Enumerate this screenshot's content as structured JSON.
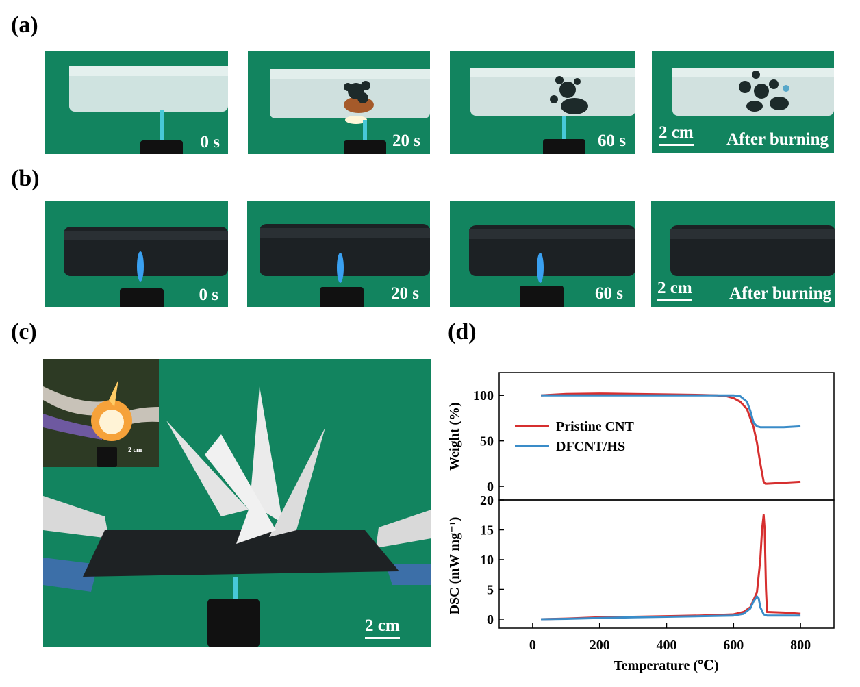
{
  "panel_labels": {
    "a": "(a)",
    "b": "(b)",
    "c": "(c)",
    "d": "(d)"
  },
  "row_a": {
    "frames": [
      "0 s",
      "20 s",
      "60 s",
      "After burning"
    ],
    "scale": "2 cm"
  },
  "row_b": {
    "frames": [
      "0 s",
      "20 s",
      "60 s",
      "After burning"
    ],
    "scale": "2 cm"
  },
  "panel_c": {
    "scale": "2 cm",
    "inset_scale": "2 cm"
  },
  "colors": {
    "background_green": "#12845f",
    "pristine": "#d62f2f",
    "dfcnt": "#3a8cc8"
  },
  "chart_data": {
    "type": "line",
    "xlabel": "Temperature (℃)",
    "x_ticks": [
      "0",
      "200",
      "400",
      "600",
      "800"
    ],
    "xlim": [
      -100,
      900
    ],
    "legend": {
      "placement": "left",
      "entries": [
        "Pristine CNT",
        "DFCNT/HS"
      ]
    },
    "top": {
      "ylabel": "Weight (%)",
      "ylim": [
        -15,
        125
      ],
      "y_ticks": [
        "0",
        "50",
        "100"
      ],
      "series": [
        {
          "name": "Pristine CNT",
          "x": [
            25,
            100,
            200,
            300,
            400,
            500,
            550,
            580,
            600,
            620,
            640,
            660,
            670,
            680,
            690,
            695,
            700,
            750,
            800
          ],
          "y": [
            100,
            101.5,
            102,
            101.5,
            101,
            100.5,
            100,
            99,
            97,
            93,
            85,
            65,
            48,
            25,
            5,
            3,
            3,
            4,
            5
          ]
        },
        {
          "name": "DFCNT/HS",
          "x": [
            25,
            100,
            200,
            300,
            400,
            500,
            600,
            620,
            640,
            650,
            660,
            670,
            680,
            700,
            750,
            800
          ],
          "y": [
            100,
            100,
            100,
            100,
            100,
            100,
            100,
            99,
            93,
            83,
            70,
            66,
            65,
            65,
            65,
            66
          ]
        }
      ]
    },
    "bottom": {
      "ylabel": "DSC (mW mg⁻¹)",
      "ylim": [
        -1.5,
        20
      ],
      "y_ticks": [
        "0",
        "5",
        "10",
        "15",
        "20"
      ],
      "series": [
        {
          "name": "Pristine CNT",
          "x": [
            25,
            100,
            200,
            300,
            400,
            500,
            600,
            630,
            650,
            670,
            680,
            685,
            690,
            693,
            697,
            700,
            750,
            800
          ],
          "y": [
            0,
            0.1,
            0.3,
            0.4,
            0.5,
            0.6,
            0.8,
            1.2,
            2.0,
            4.5,
            10,
            15,
            17.5,
            15,
            5,
            1.2,
            1.1,
            0.9
          ]
        },
        {
          "name": "DFCNT/HS",
          "x": [
            25,
            100,
            200,
            300,
            400,
            500,
            600,
            630,
            650,
            660,
            670,
            675,
            680,
            690,
            700,
            750,
            800
          ],
          "y": [
            0,
            0.05,
            0.2,
            0.3,
            0.4,
            0.5,
            0.6,
            0.9,
            1.8,
            3.0,
            3.8,
            3.5,
            2.0,
            0.8,
            0.6,
            0.6,
            0.6
          ]
        }
      ]
    }
  }
}
